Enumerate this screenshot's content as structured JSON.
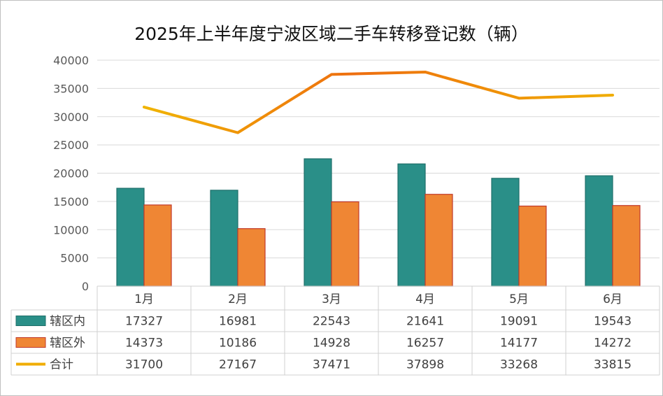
{
  "chart_data": {
    "type": "bar",
    "title": "2025年上半年度宁波区域二手车转移登记数（辆）",
    "categories": [
      "1月",
      "2月",
      "3月",
      "4月",
      "5月",
      "6月"
    ],
    "ylim": [
      0,
      40000
    ],
    "yticks": [
      "0",
      "5000",
      "10000",
      "15000",
      "20000",
      "25000",
      "30000",
      "35000",
      "40000"
    ],
    "grid": true,
    "legend": "data-table",
    "series": [
      {
        "name": "辖区内",
        "type": "bar",
        "color": "#2a8f88",
        "values": [
          17327,
          16981,
          22543,
          21641,
          19091,
          19543
        ]
      },
      {
        "name": "辖区外",
        "type": "bar",
        "color": "#ef8634",
        "values": [
          14373,
          10186,
          14928,
          16257,
          14177,
          14272
        ]
      },
      {
        "name": "合计",
        "type": "line",
        "color": "#f0ad00",
        "values": [
          31700,
          27167,
          37471,
          37898,
          33268,
          33815
        ]
      }
    ]
  }
}
